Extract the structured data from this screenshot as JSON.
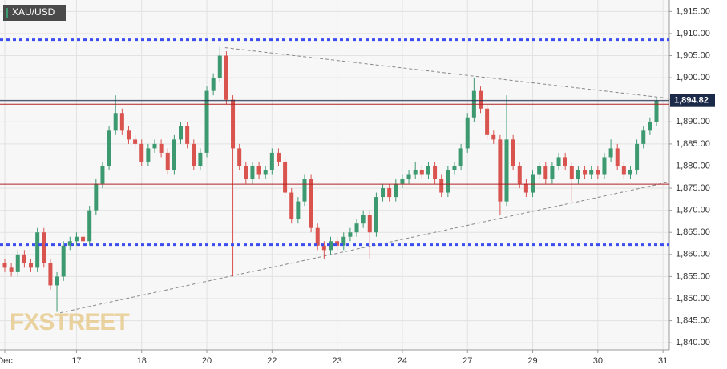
{
  "chart_data": {
    "type": "candlestick",
    "ticker": "XAU/USD",
    "watermark": "FXSTREET",
    "categories": [
      "Dec",
      null,
      null,
      null,
      null,
      null,
      null,
      null,
      null,
      null,
      null,
      "17",
      null,
      null,
      null,
      null,
      null,
      null,
      null,
      null,
      null,
      "18",
      null,
      null,
      null,
      null,
      null,
      null,
      null,
      null,
      null,
      "20",
      null,
      null,
      null,
      null,
      null,
      null,
      null,
      null,
      null,
      "22",
      null,
      null,
      null,
      null,
      null,
      null,
      null,
      null,
      null,
      "23",
      null,
      null,
      null,
      null,
      null,
      null,
      null,
      null,
      null,
      "24",
      null,
      null,
      null,
      null,
      null,
      null,
      null,
      null,
      null,
      "27",
      null,
      null,
      null,
      null,
      null,
      null,
      null,
      null,
      null,
      "29",
      null,
      null,
      null,
      null,
      null,
      null,
      null,
      null,
      null,
      "30",
      null,
      null,
      null,
      null,
      null,
      null,
      null,
      null,
      null,
      "31"
    ],
    "open": [
      1858,
      1857,
      1856,
      1860,
      1858,
      1857,
      1865,
      1858,
      1853,
      1855,
      1862,
      1863,
      1864,
      1863,
      1870,
      1876,
      1880,
      1888,
      1892,
      1888,
      1886,
      1885,
      1881,
      1884,
      1885,
      1883,
      1879,
      1886,
      1889,
      1885,
      1880,
      1883,
      1897,
      1900,
      1905,
      1895,
      1884,
      1880,
      1877,
      1880,
      1878,
      1879,
      1883,
      1881,
      1874,
      1868,
      1872,
      1877,
      1866,
      1862,
      1861,
      1863,
      1862,
      1864,
      1865,
      1867,
      1869,
      1865,
      1873,
      1875,
      1873,
      1876,
      1877,
      1878,
      1879,
      1878,
      1880,
      1877,
      1874,
      1879,
      1880,
      1884,
      1891,
      1897,
      1893,
      1887,
      1886,
      1872,
      1886,
      1880,
      1876,
      1874,
      1878,
      1880,
      1877,
      1880,
      1882,
      1880,
      1877,
      1879,
      1878,
      1879,
      1878,
      1882,
      1884,
      1880,
      1878,
      1879,
      1885,
      1888,
      1890,
      null
    ],
    "high": [
      1859,
      1858,
      1861,
      1861,
      1859,
      1866,
      1866,
      1859,
      1856,
      1863,
      1864,
      1865,
      1865,
      1871,
      1877,
      1881,
      1889,
      1896,
      1893,
      1889,
      1887,
      1886,
      1885,
      1886,
      1886,
      1884,
      1887,
      1890,
      1890,
      1886,
      1884,
      1898,
      1901,
      1907,
      1906,
      1896,
      1885,
      1881,
      1881,
      1881,
      1880,
      1884,
      1884,
      1882,
      1875,
      1873,
      1878,
      1878,
      1867,
      1863,
      1864,
      1864,
      1865,
      1866,
      1868,
      1870,
      1870,
      1874,
      1876,
      1876,
      1877,
      1878,
      1879,
      1881,
      1880,
      1881,
      1881,
      1878,
      1880,
      1881,
      1885,
      1892,
      1900,
      1898,
      1894,
      1888,
      1887,
      1896,
      1887,
      1881,
      1877,
      1879,
      1881,
      1881,
      1881,
      1883,
      1883,
      1881,
      1880,
      1880,
      1880,
      1880,
      1883,
      1886,
      1885,
      1881,
      1880,
      1886,
      1889,
      1891,
      1895.5,
      null
    ],
    "low": [
      1856,
      1855,
      1855,
      1857,
      1856,
      1856,
      1857,
      1852,
      1847,
      1854,
      1861,
      1862,
      1862,
      1862,
      1869,
      1875,
      1879,
      1887,
      1887,
      1885,
      1884,
      1880,
      1880,
      1883,
      1882,
      1878,
      1878,
      1885,
      1884,
      1879,
      1879,
      1882,
      1896,
      1899,
      1894,
      1855,
      1879,
      1876,
      1876,
      1877,
      1877,
      1878,
      1880,
      1873,
      1867,
      1867,
      1871,
      1865,
      1861,
      1859,
      1860,
      1861,
      1861,
      1863,
      1864,
      1866,
      1859,
      1864,
      1872,
      1872,
      1872,
      1875,
      1876,
      1877,
      1877,
      1877,
      1876,
      1873,
      1873,
      1878,
      1879,
      1883,
      1890,
      1892,
      1886,
      1885,
      1869,
      1871,
      1879,
      1875,
      1873,
      1873,
      1877,
      1876,
      1876,
      1879,
      1879,
      1872,
      1876,
      1877,
      1877,
      1877,
      1877,
      1881,
      1879,
      1877,
      1877,
      1878,
      1884,
      1887,
      1889,
      null
    ],
    "close": [
      1857,
      1856,
      1860,
      1858,
      1857,
      1865,
      1858,
      1853,
      1855,
      1862,
      1863,
      1864,
      1863,
      1870,
      1876,
      1880,
      1888,
      1892,
      1888,
      1886,
      1885,
      1881,
      1884,
      1885,
      1883,
      1879,
      1886,
      1889,
      1885,
      1880,
      1883,
      1897,
      1900,
      1905,
      1895,
      1884,
      1880,
      1877,
      1880,
      1878,
      1879,
      1883,
      1881,
      1874,
      1868,
      1872,
      1877,
      1866,
      1862,
      1861,
      1863,
      1862,
      1864,
      1865,
      1867,
      1869,
      1865,
      1873,
      1875,
      1873,
      1876,
      1877,
      1878,
      1879,
      1878,
      1880,
      1877,
      1874,
      1879,
      1880,
      1884,
      1891,
      1897,
      1893,
      1887,
      1886,
      1872,
      1886,
      1880,
      1876,
      1874,
      1878,
      1880,
      1877,
      1880,
      1882,
      1880,
      1877,
      1879,
      1878,
      1879,
      1878,
      1882,
      1884,
      1880,
      1878,
      1879,
      1885,
      1888,
      1890,
      1894.82,
      null
    ],
    "up_color": "#3d9970",
    "down_color": "#d9534f",
    "ylim": [
      1838.4,
      1917.6
    ],
    "yticks": [
      {
        "value": 1840,
        "label": "1,840.00"
      },
      {
        "value": 1845,
        "label": "1,845.00"
      },
      {
        "value": 1850,
        "label": "1,850.00"
      },
      {
        "value": 1855,
        "label": "1,855.00"
      },
      {
        "value": 1860,
        "label": "1,860.00"
      },
      {
        "value": 1865,
        "label": "1,865.00"
      },
      {
        "value": 1870,
        "label": "1,870.00"
      },
      {
        "value": 1875,
        "label": "1,875.00"
      },
      {
        "value": 1880,
        "label": "1,880.00"
      },
      {
        "value": 1885,
        "label": "1,885.00"
      },
      {
        "value": 1890,
        "label": "1,890.00"
      },
      {
        "value": 1895,
        "label": "1,895.00"
      },
      {
        "value": 1900,
        "label": "1,900.00"
      },
      {
        "value": 1905,
        "label": "1,905.00"
      },
      {
        "value": 1910,
        "label": "1,910.00"
      },
      {
        "value": 1915,
        "label": "1,915.00"
      }
    ],
    "grid": true,
    "levels": [
      {
        "value": 1908.6,
        "color": "#3d4ef0",
        "style": "dotted"
      },
      {
        "value": 1862.2,
        "color": "#3d4ef0",
        "style": "dotted"
      },
      {
        "value": 1894,
        "color": "#b22222",
        "style": "solid"
      },
      {
        "value": 1875.9,
        "color": "#b22222",
        "style": "solid"
      }
    ],
    "current_price": {
      "value": 1894.82,
      "label": "1,894.82",
      "color": "#1c2a4a"
    },
    "trendlines": [
      {
        "x": [
          33.8,
          102
        ],
        "y": [
          1906.8,
          1895.3
        ]
      },
      {
        "x": [
          8.5,
          102
        ],
        "y": [
          1846.8,
          1876.4
        ]
      }
    ]
  }
}
